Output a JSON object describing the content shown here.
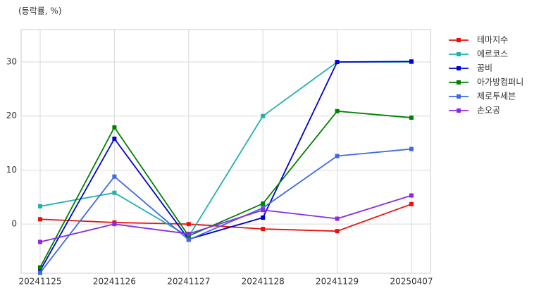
{
  "chart_data": {
    "type": "line",
    "y_label": "(등락률, %)",
    "categories": [
      "20241125",
      "20241126",
      "20241127",
      "20241128",
      "20241129",
      "20250407"
    ],
    "series": [
      {
        "name": "테마지수",
        "color": "#e8110f",
        "values": [
          0.9,
          0.3,
          0,
          -0.9,
          -1.3,
          3.7
        ]
      },
      {
        "name": "에르코스",
        "color": "#20b2aa",
        "values": [
          3.3,
          5.8,
          -2.3,
          20,
          30,
          30
        ]
      },
      {
        "name": "꿈비",
        "color": "#0000cd",
        "values": [
          -8.6,
          15.8,
          -2.8,
          1.2,
          30,
          30.1
        ]
      },
      {
        "name": "아가방컴퍼니",
        "color": "#008000",
        "values": [
          -8,
          17.9,
          -2.2,
          3.8,
          20.9,
          19.7
        ]
      },
      {
        "name": "제로투세븐",
        "color": "#4169e1",
        "values": [
          -9,
          8.8,
          -2.9,
          3.0,
          12.6,
          13.9
        ]
      },
      {
        "name": "손오공",
        "color": "#8a2be2",
        "values": [
          -3.3,
          0,
          -1.8,
          2.6,
          1.0,
          5.3
        ]
      }
    ],
    "ylim": [
      -9.1,
      36
    ],
    "yticks": [
      0,
      10,
      20,
      30
    ],
    "grid": true,
    "legend": "outside-right"
  }
}
